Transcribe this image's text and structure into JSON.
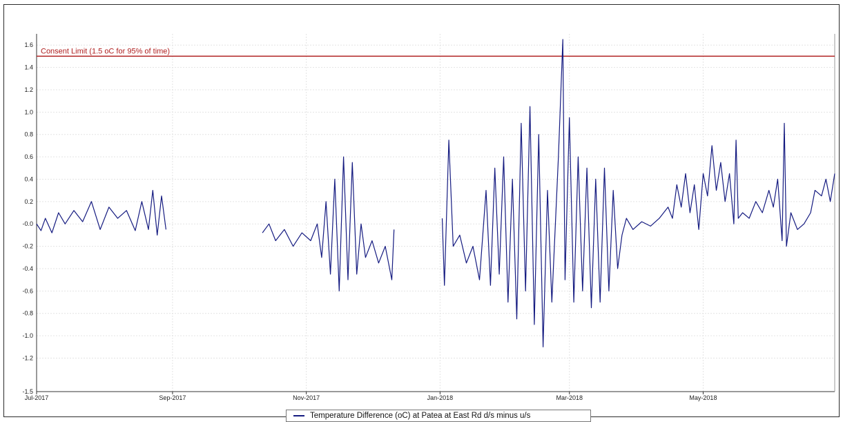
{
  "chart_data": {
    "type": "line",
    "title": "",
    "xlabel": "",
    "ylabel": "",
    "ylim": [
      -1.5,
      1.7
    ],
    "xlim": [
      "2017-07-01",
      "2018-06-30"
    ],
    "grid": true,
    "legend_position": "bottom-center",
    "x_ticks": [
      {
        "date": "2017-07-01",
        "label": "Jul-2017"
      },
      {
        "date": "2017-09-01",
        "label": "Sep-2017"
      },
      {
        "date": "2017-11-01",
        "label": "Nov-2017"
      },
      {
        "date": "2018-01-01",
        "label": "Jan-2018"
      },
      {
        "date": "2018-03-01",
        "label": "Mar-2018"
      },
      {
        "date": "2018-05-01",
        "label": "May-2018"
      }
    ],
    "y_ticks": [
      -1.5,
      -1.2,
      -1.0,
      -0.8,
      -0.6,
      -0.4,
      -0.2,
      0.0,
      0.2,
      0.4,
      0.6,
      0.8,
      1.0,
      1.2,
      1.4,
      1.6
    ],
    "y_tick_labels": [
      "-1.5",
      "-1.2",
      "-1.0",
      "-0.8",
      "-0.6",
      "-0.4",
      "-0.2",
      "-0.0",
      "0.2",
      "0.4",
      "0.6",
      "0.8",
      "1.0",
      "1.2",
      "1.4",
      "1.6"
    ],
    "reference_line": {
      "y": 1.5,
      "label": "Consent Limit (1.5 oC for 95% of time)",
      "color": "#b02020"
    },
    "series": [
      {
        "name": "Temperature Difference (oC) at Patea at East Rd d/s minus u/s",
        "color": "#141a80",
        "segments": [
          [
            {
              "x": "2017-07-01",
              "y": 0.0
            },
            {
              "x": "2017-07-03",
              "y": -0.06
            },
            {
              "x": "2017-07-05",
              "y": 0.05
            },
            {
              "x": "2017-07-08",
              "y": -0.08
            },
            {
              "x": "2017-07-11",
              "y": 0.1
            },
            {
              "x": "2017-07-14",
              "y": 0.0
            },
            {
              "x": "2017-07-18",
              "y": 0.12
            },
            {
              "x": "2017-07-22",
              "y": 0.02
            },
            {
              "x": "2017-07-26",
              "y": 0.2
            },
            {
              "x": "2017-07-30",
              "y": -0.05
            },
            {
              "x": "2017-08-03",
              "y": 0.15
            },
            {
              "x": "2017-08-07",
              "y": 0.05
            },
            {
              "x": "2017-08-11",
              "y": 0.12
            },
            {
              "x": "2017-08-15",
              "y": -0.06
            },
            {
              "x": "2017-08-18",
              "y": 0.2
            },
            {
              "x": "2017-08-21",
              "y": -0.05
            },
            {
              "x": "2017-08-23",
              "y": 0.3
            },
            {
              "x": "2017-08-25",
              "y": -0.1
            },
            {
              "x": "2017-08-27",
              "y": 0.25
            },
            {
              "x": "2017-08-29",
              "y": -0.05
            }
          ],
          [
            {
              "x": "2017-10-12",
              "y": -0.08
            },
            {
              "x": "2017-10-15",
              "y": 0.0
            },
            {
              "x": "2017-10-18",
              "y": -0.15
            },
            {
              "x": "2017-10-22",
              "y": -0.05
            },
            {
              "x": "2017-10-26",
              "y": -0.2
            },
            {
              "x": "2017-10-30",
              "y": -0.08
            },
            {
              "x": "2017-11-03",
              "y": -0.15
            },
            {
              "x": "2017-11-06",
              "y": 0.0
            },
            {
              "x": "2017-11-08",
              "y": -0.3
            },
            {
              "x": "2017-11-10",
              "y": 0.2
            },
            {
              "x": "2017-11-12",
              "y": -0.45
            },
            {
              "x": "2017-11-14",
              "y": 0.4
            },
            {
              "x": "2017-11-16",
              "y": -0.6
            },
            {
              "x": "2017-11-18",
              "y": 0.6
            },
            {
              "x": "2017-11-20",
              "y": -0.5
            },
            {
              "x": "2017-11-22",
              "y": 0.55
            },
            {
              "x": "2017-11-24",
              "y": -0.45
            },
            {
              "x": "2017-11-26",
              "y": 0.0
            },
            {
              "x": "2017-11-28",
              "y": -0.3
            },
            {
              "x": "2017-12-01",
              "y": -0.15
            },
            {
              "x": "2017-12-04",
              "y": -0.35
            },
            {
              "x": "2017-12-07",
              "y": -0.2
            },
            {
              "x": "2017-12-10",
              "y": -0.5
            },
            {
              "x": "2017-12-11",
              "y": -0.05
            }
          ],
          [
            {
              "x": "2018-01-02",
              "y": 0.05
            },
            {
              "x": "2018-01-03",
              "y": -0.55
            },
            {
              "x": "2018-01-05",
              "y": 0.75
            },
            {
              "x": "2018-01-07",
              "y": -0.2
            },
            {
              "x": "2018-01-10",
              "y": -0.1
            },
            {
              "x": "2018-01-13",
              "y": -0.35
            },
            {
              "x": "2018-01-16",
              "y": -0.2
            },
            {
              "x": "2018-01-19",
              "y": -0.5
            },
            {
              "x": "2018-01-22",
              "y": 0.3
            },
            {
              "x": "2018-01-24",
              "y": -0.55
            },
            {
              "x": "2018-01-26",
              "y": 0.5
            },
            {
              "x": "2018-01-28",
              "y": -0.45
            },
            {
              "x": "2018-01-30",
              "y": 0.6
            },
            {
              "x": "2018-02-01",
              "y": -0.7
            },
            {
              "x": "2018-02-03",
              "y": 0.4
            },
            {
              "x": "2018-02-05",
              "y": -0.85
            },
            {
              "x": "2018-02-07",
              "y": 0.9
            },
            {
              "x": "2018-02-09",
              "y": -0.6
            },
            {
              "x": "2018-02-11",
              "y": 1.05
            },
            {
              "x": "2018-02-13",
              "y": -0.9
            },
            {
              "x": "2018-02-15",
              "y": 0.8
            },
            {
              "x": "2018-02-17",
              "y": -1.1
            },
            {
              "x": "2018-02-19",
              "y": 0.3
            },
            {
              "x": "2018-02-21",
              "y": -0.7
            },
            {
              "x": "2018-02-24",
              "y": 0.6
            },
            {
              "x": "2018-02-26",
              "y": 1.65
            },
            {
              "x": "2018-02-27",
              "y": -0.5
            },
            {
              "x": "2018-03-01",
              "y": 0.95
            },
            {
              "x": "2018-03-03",
              "y": -0.7
            },
            {
              "x": "2018-03-05",
              "y": 0.6
            },
            {
              "x": "2018-03-07",
              "y": -0.6
            },
            {
              "x": "2018-03-09",
              "y": 0.5
            },
            {
              "x": "2018-03-11",
              "y": -0.75
            },
            {
              "x": "2018-03-13",
              "y": 0.4
            },
            {
              "x": "2018-03-15",
              "y": -0.7
            },
            {
              "x": "2018-03-17",
              "y": 0.5
            },
            {
              "x": "2018-03-19",
              "y": -0.6
            },
            {
              "x": "2018-03-21",
              "y": 0.3
            },
            {
              "x": "2018-03-23",
              "y": -0.4
            },
            {
              "x": "2018-03-25",
              "y": -0.1
            },
            {
              "x": "2018-03-27",
              "y": 0.05
            },
            {
              "x": "2018-03-30",
              "y": -0.05
            },
            {
              "x": "2018-04-03",
              "y": 0.02
            },
            {
              "x": "2018-04-07",
              "y": -0.02
            },
            {
              "x": "2018-04-11",
              "y": 0.05
            },
            {
              "x": "2018-04-15",
              "y": 0.15
            },
            {
              "x": "2018-04-17",
              "y": 0.05
            },
            {
              "x": "2018-04-19",
              "y": 0.35
            },
            {
              "x": "2018-04-21",
              "y": 0.15
            },
            {
              "x": "2018-04-23",
              "y": 0.45
            },
            {
              "x": "2018-04-25",
              "y": 0.1
            },
            {
              "x": "2018-04-27",
              "y": 0.35
            },
            {
              "x": "2018-04-29",
              "y": -0.05
            },
            {
              "x": "2018-05-01",
              "y": 0.45
            },
            {
              "x": "2018-05-03",
              "y": 0.25
            },
            {
              "x": "2018-05-05",
              "y": 0.7
            },
            {
              "x": "2018-05-07",
              "y": 0.3
            },
            {
              "x": "2018-05-09",
              "y": 0.55
            },
            {
              "x": "2018-05-11",
              "y": 0.2
            },
            {
              "x": "2018-05-13",
              "y": 0.45
            },
            {
              "x": "2018-05-15",
              "y": 0.0
            },
            {
              "x": "2018-05-16",
              "y": 0.75
            },
            {
              "x": "2018-05-17",
              "y": 0.05
            },
            {
              "x": "2018-05-19",
              "y": 0.1
            },
            {
              "x": "2018-05-22",
              "y": 0.05
            },
            {
              "x": "2018-05-25",
              "y": 0.2
            },
            {
              "x": "2018-05-28",
              "y": 0.1
            },
            {
              "x": "2018-05-31",
              "y": 0.3
            },
            {
              "x": "2018-06-02",
              "y": 0.15
            },
            {
              "x": "2018-06-04",
              "y": 0.4
            },
            {
              "x": "2018-06-06",
              "y": -0.15
            },
            {
              "x": "2018-06-07",
              "y": 0.9
            },
            {
              "x": "2018-06-08",
              "y": -0.2
            },
            {
              "x": "2018-06-10",
              "y": 0.1
            },
            {
              "x": "2018-06-13",
              "y": -0.05
            },
            {
              "x": "2018-06-16",
              "y": 0.0
            },
            {
              "x": "2018-06-19",
              "y": 0.1
            },
            {
              "x": "2018-06-21",
              "y": 0.3
            },
            {
              "x": "2018-06-24",
              "y": 0.25
            },
            {
              "x": "2018-06-26",
              "y": 0.4
            },
            {
              "x": "2018-06-28",
              "y": 0.2
            },
            {
              "x": "2018-06-30",
              "y": 0.45
            }
          ]
        ]
      }
    ]
  }
}
